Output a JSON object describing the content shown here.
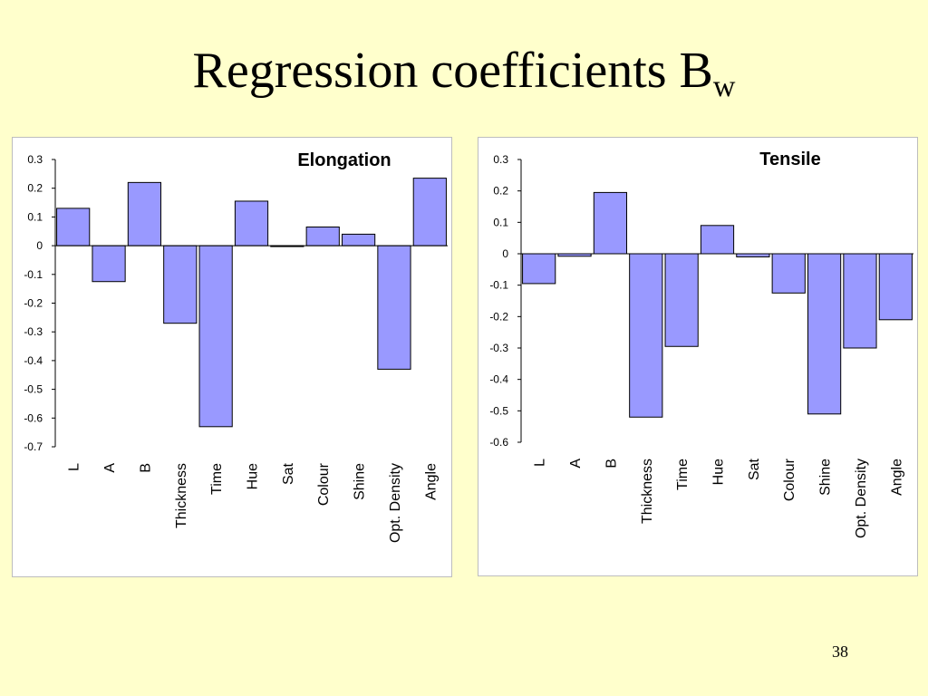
{
  "slide": {
    "title": "Regression coefficients B",
    "title_subscript": "w",
    "page_number": "38"
  },
  "colors": {
    "background": "#FFFFCC",
    "bar_fill": "#9999FF",
    "bar_stroke": "#000000"
  },
  "chart_data": [
    {
      "type": "bar",
      "title": "Elongation",
      "categories": [
        "L",
        "A",
        "B",
        "Thickness",
        "Time",
        "Hue",
        "Sat",
        "Colour",
        "Shine",
        "Opt. Density",
        "Angle"
      ],
      "values": [
        0.13,
        -0.125,
        0.22,
        -0.27,
        -0.63,
        0.155,
        -0.003,
        0.065,
        0.04,
        -0.43,
        0.235
      ],
      "ylim": [
        -0.7,
        0.3
      ],
      "yticks": [
        "0.3",
        "0.2",
        "0.1",
        "0",
        "-0.1",
        "-0.2",
        "-0.3",
        "-0.4",
        "-0.5",
        "-0.6",
        "-0.7"
      ],
      "xlabel": "",
      "ylabel": "",
      "grid": false,
      "legend": "none"
    },
    {
      "type": "bar",
      "title": "Tensile",
      "categories": [
        "L",
        "A",
        "B",
        "Thickness",
        "Time",
        "Hue",
        "Sat",
        "Colour",
        "Shine",
        "Opt. Density",
        "Angle"
      ],
      "values": [
        -0.095,
        -0.008,
        0.195,
        -0.52,
        -0.295,
        0.09,
        -0.01,
        -0.125,
        -0.51,
        -0.3,
        -0.21
      ],
      "ylim": [
        -0.6,
        0.3
      ],
      "yticks": [
        "0.3",
        "0.2",
        "0.1",
        "0",
        "-0.1",
        "-0.2",
        "-0.3",
        "-0.4",
        "-0.5",
        "-0.6"
      ],
      "xlabel": "",
      "ylabel": "",
      "grid": false,
      "legend": "none"
    }
  ]
}
